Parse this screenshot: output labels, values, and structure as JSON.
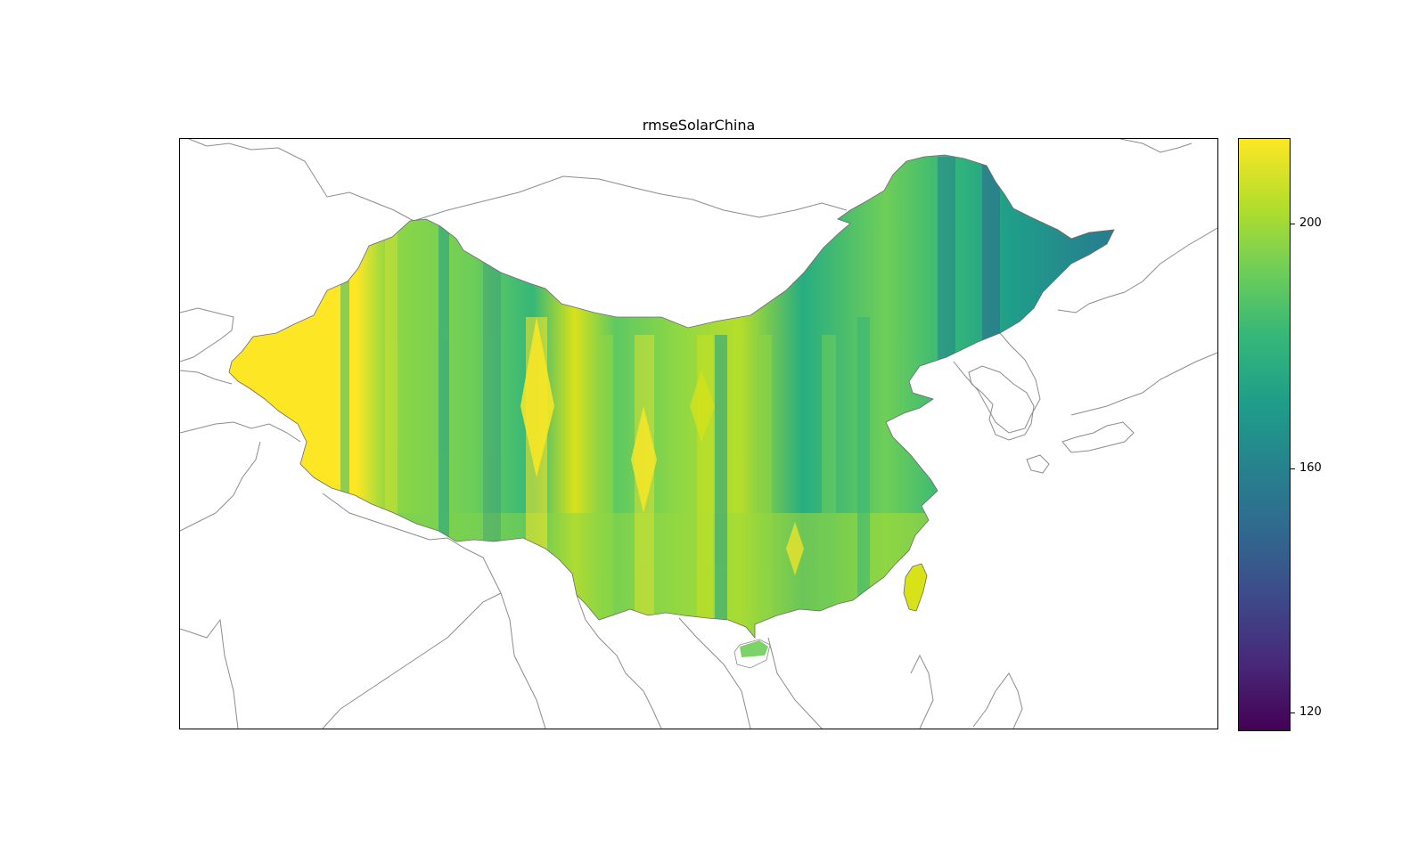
{
  "title": "rmseSolarChina",
  "colorbar": {
    "colormap": "viridis",
    "min": 117,
    "max": 214,
    "ticks": [
      {
        "value": 200,
        "label": "200"
      },
      {
        "value": 160,
        "label": "160"
      },
      {
        "value": 120,
        "label": "120"
      }
    ],
    "colors": [
      "#440154",
      "#482878",
      "#3e4989",
      "#31688e",
      "#26828e",
      "#1f9e89",
      "#35b779",
      "#6ece58",
      "#b5de2b",
      "#fde725"
    ]
  },
  "map": {
    "region": "China",
    "coastline_color": "#8c8c8c",
    "country_outline_color": "#8c8c8c"
  }
}
